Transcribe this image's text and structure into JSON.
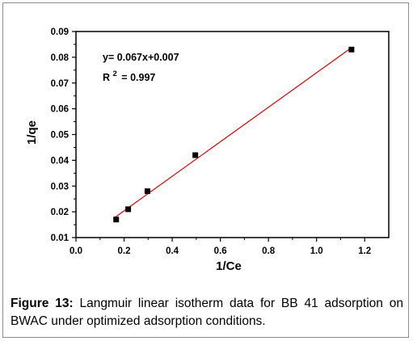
{
  "chart_data": {
    "type": "scatter",
    "xlabel": "1/Ce",
    "ylabel": "1/qe",
    "xlim": [
      0.0,
      1.3
    ],
    "ylim": [
      0.01,
      0.09
    ],
    "x_ticks": [
      "0.0",
      "0.2",
      "0.4",
      "0.6",
      "0.8",
      "1.0",
      "1.2"
    ],
    "y_ticks": [
      "0.01",
      "0.02",
      "0.03",
      "0.04",
      "0.05",
      "0.06",
      "0.07",
      "0.08",
      "0.09"
    ],
    "grid": false,
    "series": [
      {
        "x": [
          0.167,
          0.217,
          0.297,
          0.496,
          1.145
        ],
        "y": [
          0.017,
          0.021,
          0.028,
          0.042,
          0.083
        ],
        "marker": "square",
        "color": "#000000"
      }
    ],
    "fit_line": {
      "slope": 0.067,
      "intercept": 0.007,
      "x_range": [
        0.155,
        1.148
      ],
      "color": "#e00000"
    },
    "annotations": {
      "equation": "y= 0.067x+0.007",
      "r2_prefix": "R",
      "r2_sup": "2",
      "r2_value": "= 0.997"
    }
  },
  "caption": {
    "label": "Figure 13:",
    "text": " Langmuir linear isotherm data for BB 41 adsorption on BWAC under optimized adsorption conditions."
  }
}
